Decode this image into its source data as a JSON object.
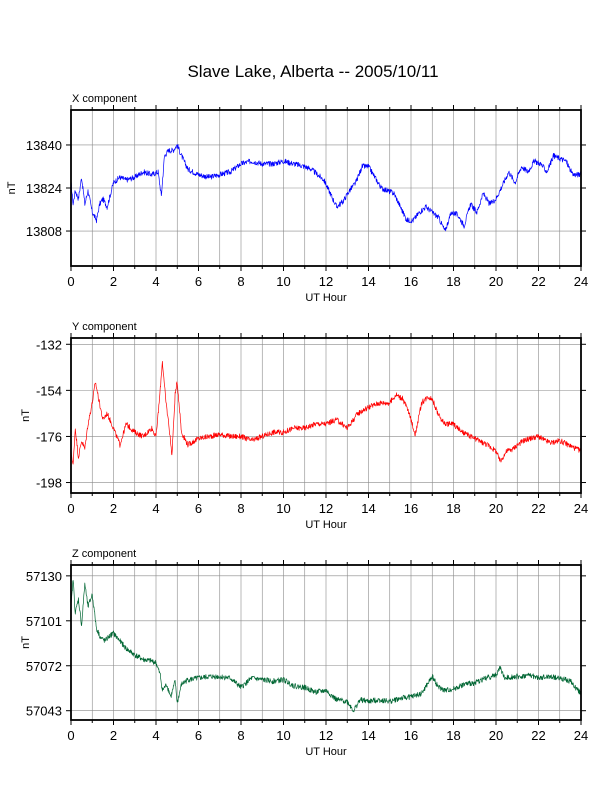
{
  "page_title": "Slave Lake, Alberta -- 2005/10/11",
  "chart_data": [
    {
      "type": "line",
      "title": "X component",
      "xlabel": "UT Hour",
      "ylabel": "nT",
      "xlim": [
        0,
        24
      ],
      "ylim": [
        13795,
        13853
      ],
      "xticks": [
        0,
        2,
        4,
        6,
        8,
        10,
        12,
        14,
        16,
        18,
        20,
        22,
        24
      ],
      "xtick_labels": [
        "0",
        "2",
        "4",
        "6",
        "8",
        "10",
        "12",
        "14",
        "16",
        "18",
        "20",
        "22",
        "24"
      ],
      "yticks": [
        13808,
        13824,
        13840
      ],
      "ytick_labels": [
        "13808",
        "13824",
        "13840"
      ],
      "grid": true,
      "color": "#0000ff",
      "series": [
        {
          "x": [
            0,
            0.1,
            0.2,
            0.35,
            0.5,
            0.65,
            0.8,
            1.0,
            1.2,
            1.35,
            1.5,
            1.7,
            2.0,
            2.3,
            2.6,
            3.0,
            3.4,
            3.8,
            4.1,
            4.25,
            4.4,
            4.6,
            4.8,
            5.0,
            5.2,
            5.5,
            6.0,
            6.5,
            7.0,
            7.5,
            8.0,
            8.5,
            9.0,
            9.5,
            10.0,
            10.5,
            11.0,
            11.3,
            11.6,
            11.9,
            12.2,
            12.5,
            12.8,
            13.1,
            13.4,
            13.7,
            14.0,
            14.3,
            14.6,
            14.9,
            15.2,
            15.5,
            15.8,
            16.1,
            16.4,
            16.7,
            17.0,
            17.3,
            17.6,
            17.9,
            18.2,
            18.5,
            18.8,
            19.1,
            19.4,
            19.7,
            20.0,
            20.3,
            20.6,
            20.9,
            21.2,
            21.5,
            21.8,
            22.1,
            22.4,
            22.7,
            23.0,
            23.3,
            23.6,
            24.0
          ],
          "y": [
            13826,
            13818,
            13823,
            13820,
            13828,
            13818,
            13823,
            13815,
            13812,
            13818,
            13820,
            13817,
            13826,
            13828,
            13827,
            13828,
            13830,
            13829,
            13830,
            13821,
            13836,
            13838,
            13838,
            13840,
            13836,
            13831,
            13829,
            13828,
            13829,
            13830,
            13833,
            13834,
            13833,
            13833,
            13834,
            13833,
            13832,
            13831,
            13829,
            13827,
            13822,
            13817,
            13819,
            13823,
            13826,
            13832,
            13832,
            13828,
            13824,
            13823,
            13822,
            13817,
            13812,
            13812,
            13815,
            13817,
            13815,
            13813,
            13808,
            13815,
            13814,
            13810,
            13818,
            13815,
            13822,
            13818,
            13820,
            13825,
            13830,
            13826,
            13832,
            13830,
            13834,
            13833,
            13830,
            13836,
            13835,
            13834,
            13829,
            13829
          ]
        }
      ]
    },
    {
      "type": "line",
      "title": "Y component",
      "xlabel": "UT Hour",
      "ylabel": "nT",
      "xlim": [
        0,
        24
      ],
      "ylim": [
        -203,
        -129
      ],
      "xticks": [
        0,
        2,
        4,
        6,
        8,
        10,
        12,
        14,
        16,
        18,
        20,
        22,
        24
      ],
      "xtick_labels": [
        "0",
        "2",
        "4",
        "6",
        "8",
        "10",
        "12",
        "14",
        "16",
        "18",
        "20",
        "22",
        "24"
      ],
      "yticks": [
        -198,
        -176,
        -154,
        -132
      ],
      "ytick_labels": [
        "-198",
        "-176",
        "-154",
        "-132"
      ],
      "grid": true,
      "color": "#ff0000",
      "series": [
        {
          "x": [
            0,
            0.1,
            0.2,
            0.35,
            0.5,
            0.65,
            0.8,
            1.0,
            1.15,
            1.3,
            1.5,
            1.7,
            2.0,
            2.3,
            2.6,
            3.0,
            3.4,
            3.8,
            4.0,
            4.15,
            4.3,
            4.45,
            4.6,
            4.75,
            4.9,
            5.0,
            5.2,
            5.5,
            6.0,
            6.5,
            7.0,
            7.5,
            8.0,
            8.5,
            9.0,
            9.5,
            10.0,
            10.5,
            11.0,
            11.5,
            12.0,
            12.5,
            13.0,
            13.5,
            14.0,
            14.5,
            15.0,
            15.3,
            15.6,
            15.8,
            16.0,
            16.2,
            16.5,
            16.8,
            17.0,
            17.3,
            17.6,
            18.0,
            18.4,
            18.8,
            19.2,
            19.6,
            20.0,
            20.2,
            20.5,
            20.8,
            21.0,
            21.3,
            21.6,
            22.0,
            22.3,
            22.6,
            23.0,
            23.4,
            23.8,
            24.0
          ],
          "y": [
            -183,
            -190,
            -172,
            -186,
            -178,
            -182,
            -170,
            -160,
            -150,
            -158,
            -168,
            -165,
            -172,
            -180,
            -170,
            -174,
            -176,
            -172,
            -176,
            -160,
            -140,
            -158,
            -170,
            -185,
            -156,
            -150,
            -174,
            -180,
            -177,
            -176,
            -175,
            -176,
            -176,
            -178,
            -176,
            -174,
            -174,
            -172,
            -172,
            -170,
            -170,
            -168,
            -172,
            -165,
            -162,
            -160,
            -160,
            -156,
            -158,
            -162,
            -168,
            -175,
            -160,
            -157,
            -158,
            -166,
            -170,
            -170,
            -174,
            -176,
            -178,
            -180,
            -183,
            -188,
            -183,
            -182,
            -180,
            -178,
            -177,
            -176,
            -178,
            -179,
            -178,
            -180,
            -182,
            -183
          ]
        }
      ]
    },
    {
      "type": "line",
      "title": "Z component",
      "xlabel": "UT Hour",
      "ylabel": "nT",
      "xlim": [
        0,
        24
      ],
      "ylim": [
        57037,
        57137
      ],
      "xticks": [
        0,
        2,
        4,
        6,
        8,
        10,
        12,
        14,
        16,
        18,
        20,
        22,
        24
      ],
      "xtick_labels": [
        "0",
        "2",
        "4",
        "6",
        "8",
        "10",
        "12",
        "14",
        "16",
        "18",
        "20",
        "22",
        "24"
      ],
      "yticks": [
        57043,
        57072,
        57101,
        57130
      ],
      "ytick_labels": [
        "57043",
        "57072",
        "57101",
        "57130"
      ],
      "grid": true,
      "color": "#006633",
      "series": [
        {
          "x": [
            0,
            0.1,
            0.2,
            0.35,
            0.5,
            0.65,
            0.8,
            1.0,
            1.2,
            1.4,
            1.6,
            1.8,
            2.0,
            2.3,
            2.6,
            3.0,
            3.4,
            3.8,
            4.0,
            4.2,
            4.3,
            4.5,
            4.7,
            4.9,
            5.0,
            5.2,
            5.5,
            6.0,
            6.5,
            7.0,
            7.5,
            8.0,
            8.5,
            9.0,
            9.5,
            10.0,
            10.5,
            11.0,
            11.5,
            12.0,
            12.5,
            13.0,
            13.3,
            13.6,
            14.0,
            14.5,
            15.0,
            15.5,
            16.0,
            16.5,
            17.0,
            17.3,
            17.6,
            18.0,
            18.5,
            19.0,
            19.5,
            20.0,
            20.2,
            20.4,
            20.8,
            21.2,
            21.6,
            22.0,
            22.5,
            23.0,
            23.5,
            24.0
          ],
          "y": [
            57110,
            57128,
            57106,
            57115,
            57098,
            57125,
            57110,
            57118,
            57096,
            57090,
            57088,
            57091,
            57093,
            57088,
            57083,
            57079,
            57076,
            57075,
            57074,
            57066,
            57056,
            57060,
            57052,
            57062,
            57048,
            57060,
            57063,
            57064,
            57065,
            57065,
            57064,
            57058,
            57064,
            57063,
            57062,
            57063,
            57059,
            57058,
            57055,
            57056,
            57050,
            57049,
            57043,
            57050,
            57049,
            57050,
            57049,
            57051,
            57052,
            57054,
            57065,
            57058,
            57056,
            57057,
            57060,
            57061,
            57064,
            57066,
            57071,
            57064,
            57065,
            57065,
            57066,
            57064,
            57065,
            57064,
            57062,
            57054
          ]
        }
      ]
    }
  ]
}
